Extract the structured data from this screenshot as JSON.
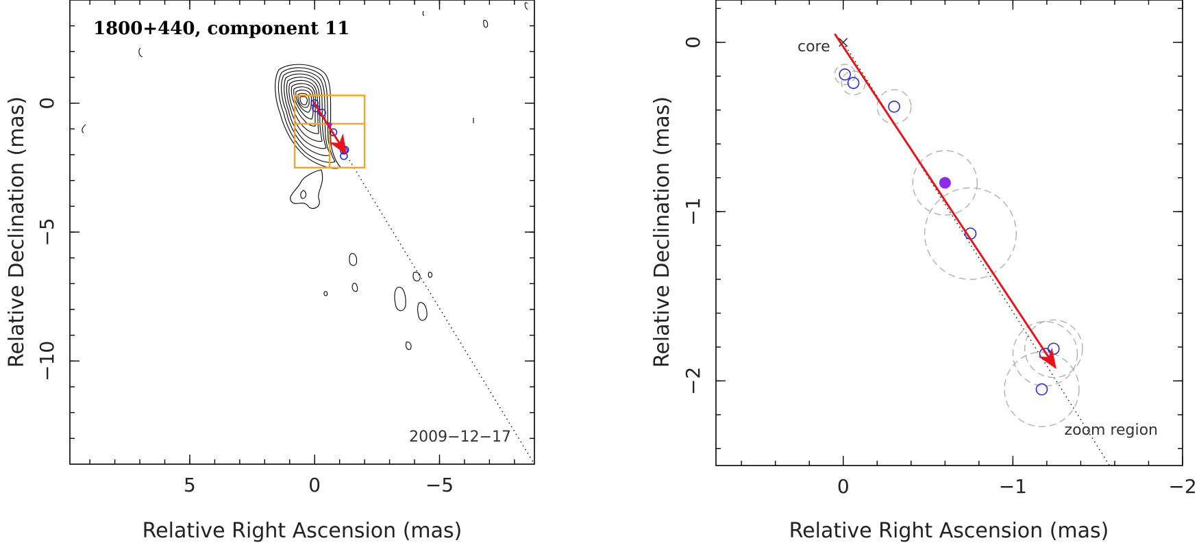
{
  "colors": {
    "arrow": "#e8141b",
    "highlight_point": "#8b2bf0",
    "components": "#2b2bd6",
    "zoom_box": "#f5a623",
    "error_circles": "#b0b0b0"
  },
  "chart_data": [
    {
      "type": "scatter",
      "title": "1800+440, component 11",
      "date": "2009−12−17",
      "xlabel": "Relative Right Ascension (mas)",
      "ylabel": "Relative Declination (mas)",
      "xlim": [
        9.8,
        -8.8
      ],
      "ylim": [
        -14,
        4
      ],
      "x_ticks": [
        5,
        0,
        -5
      ],
      "x_tick_labels": [
        "5",
        "0",
        "−5"
      ],
      "y_ticks": [
        0,
        -5,
        -10
      ],
      "y_tick_labels": [
        "0",
        "−5",
        "−10"
      ],
      "x_minor_ticks": [
        9,
        8,
        7,
        6,
        5,
        4,
        3,
        2,
        1,
        0,
        -1,
        -2,
        -3,
        -4,
        -5,
        -6,
        -7,
        -8
      ],
      "y_minor_ticks": [
        3,
        2,
        1,
        0,
        -1,
        -2,
        -3,
        -4,
        -5,
        -6,
        -7,
        -8,
        -9,
        -10,
        -11,
        -12,
        -13
      ],
      "components": [
        {
          "x": 0.0,
          "y": 0.0
        },
        {
          "x": -0.05,
          "y": -0.2
        },
        {
          "x": -0.3,
          "y": -0.37
        },
        {
          "x": -0.75,
          "y": -1.13
        },
        {
          "x": -1.17,
          "y": -1.84
        },
        {
          "x": -1.22,
          "y": -1.81
        },
        {
          "x": -1.17,
          "y": -2.05
        }
      ],
      "highlight_component": {
        "x": -0.6,
        "y": -0.83
      },
      "arrow": {
        "from": [
          0.05,
          0.05
        ],
        "to": [
          -1.25,
          -1.95
        ]
      },
      "trajectory_line": {
        "from": [
          0.0,
          0.0
        ],
        "to": [
          -8.8,
          -14
        ]
      },
      "zoom_region": {
        "x": [
          0.8,
          -2.0
        ],
        "y": [
          0.3,
          -2.5
        ]
      },
      "zoom_inner_lines": {
        "x": -0.6,
        "y": -0.8
      }
    },
    {
      "type": "scatter",
      "xlabel": "Relative Right Ascension (mas)",
      "ylabel": "Relative Declination (mas)",
      "xlim": [
        0.75,
        -2.0
      ],
      "ylim": [
        -2.5,
        0.25
      ],
      "x_ticks": [
        0,
        -1,
        -2
      ],
      "x_tick_labels": [
        "0",
        "−1",
        "−2"
      ],
      "y_ticks": [
        0,
        -1,
        -2
      ],
      "y_tick_labels": [
        "0",
        "−1",
        "−2"
      ],
      "x_minor_ticks": [
        0.6,
        0.4,
        0.2,
        0,
        -0.2,
        -0.4,
        -0.6,
        -0.8,
        -1.0,
        -1.2,
        -1.4,
        -1.6,
        -1.8
      ],
      "y_minor_ticks": [
        0.2,
        0,
        -0.2,
        -0.4,
        -0.6,
        -0.8,
        -1.0,
        -1.2,
        -1.4,
        -1.6,
        -1.8,
        -2.0,
        -2.2,
        -2.4
      ],
      "core_label": "core",
      "core_marker": {
        "x": 0.0,
        "y": 0.0
      },
      "zoom_label": "zoom region",
      "components": [
        {
          "x": -0.01,
          "y": -0.19,
          "err": 0.06
        },
        {
          "x": -0.06,
          "y": -0.24,
          "err": 0.07
        },
        {
          "x": -0.3,
          "y": -0.38,
          "err": 0.1
        },
        {
          "x": -0.75,
          "y": -1.13,
          "err": 0.27
        },
        {
          "x": -1.19,
          "y": -1.84,
          "err": 0.19
        },
        {
          "x": -1.24,
          "y": -1.81,
          "err": 0.17
        },
        {
          "x": -1.17,
          "y": -2.05,
          "err": 0.22
        }
      ],
      "highlight_component": {
        "x": -0.6,
        "y": -0.83,
        "err": 0.19
      },
      "arrow": {
        "from": [
          0.05,
          0.05
        ],
        "to": [
          -1.25,
          -1.92
        ]
      },
      "trajectory_line": {
        "from": [
          0.0,
          0.0
        ],
        "to": [
          -1.57,
          -2.5
        ]
      }
    }
  ]
}
